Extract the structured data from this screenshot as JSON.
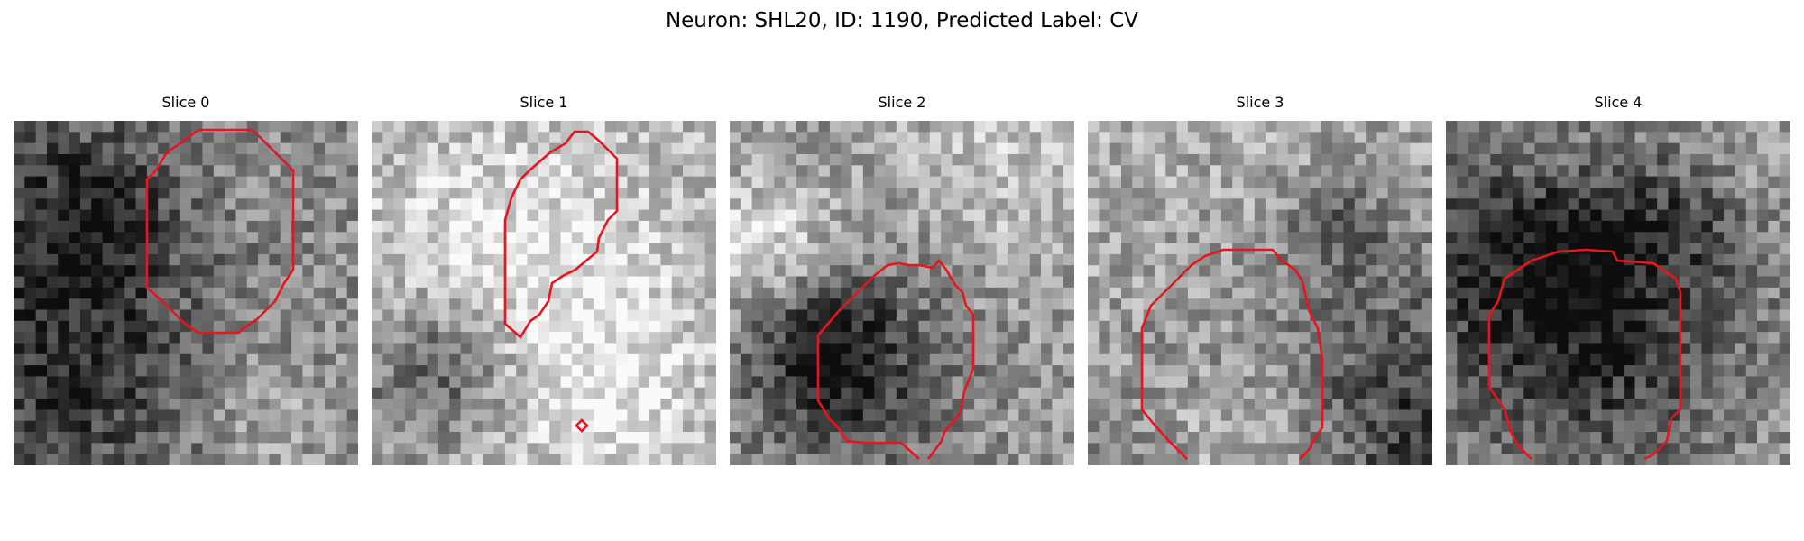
{
  "figure": {
    "title": "Neuron: SHL20, ID: 1190, Predicted Label: CV"
  },
  "contour_color": "#e8141e",
  "slices": [
    {
      "label": "Slice 0",
      "seed": 11,
      "base": 0.55
    },
    {
      "label": "Slice 1",
      "seed": 23,
      "base": 0.7
    },
    {
      "label": "Slice 2",
      "seed": 37,
      "base": 0.6
    },
    {
      "label": "Slice 3",
      "seed": 41,
      "base": 0.68
    },
    {
      "label": "Slice 4",
      "seed": 53,
      "base": 0.6
    }
  ]
}
